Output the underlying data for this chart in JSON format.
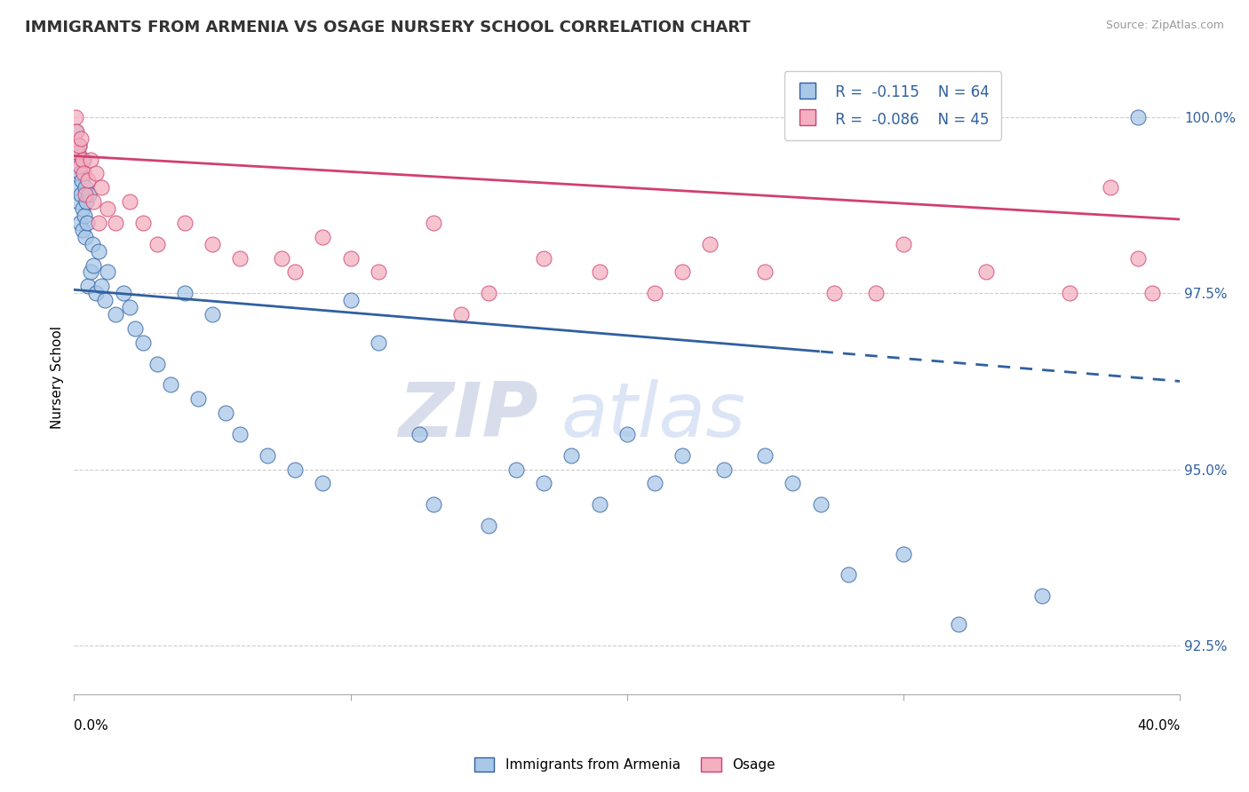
{
  "title": "IMMIGRANTS FROM ARMENIA VS OSAGE NURSERY SCHOOL CORRELATION CHART",
  "source": "Source: ZipAtlas.com",
  "ylabel": "Nursery School",
  "x_min": 0.0,
  "x_max": 40.0,
  "y_min": 91.8,
  "y_max": 100.8,
  "y_ticks": [
    92.5,
    95.0,
    97.5,
    100.0
  ],
  "y_tick_labels": [
    "92.5%",
    "95.0%",
    "97.5%",
    "100.0%"
  ],
  "legend_labels": [
    "Immigrants from Armenia",
    "Osage"
  ],
  "blue_R": -0.115,
  "blue_N": 64,
  "pink_R": -0.086,
  "pink_N": 45,
  "blue_color": "#A8C8E8",
  "pink_color": "#F4B0C0",
  "blue_line_color": "#3060A0",
  "pink_line_color": "#D04070",
  "watermark_zip": "ZIP",
  "watermark_atlas": "atlas",
  "blue_reg_x0": 0.0,
  "blue_reg_y0": 97.55,
  "blue_reg_x1": 40.0,
  "blue_reg_y1": 96.25,
  "blue_solid_end": 27.0,
  "pink_reg_x0": 0.0,
  "pink_reg_y0": 99.45,
  "pink_reg_x1": 40.0,
  "pink_reg_y1": 98.55,
  "blue_scatter_x": [
    0.05,
    0.08,
    0.1,
    0.12,
    0.15,
    0.18,
    0.2,
    0.22,
    0.25,
    0.28,
    0.3,
    0.32,
    0.35,
    0.38,
    0.4,
    0.42,
    0.45,
    0.48,
    0.5,
    0.55,
    0.6,
    0.65,
    0.7,
    0.8,
    0.9,
    1.0,
    1.1,
    1.2,
    1.5,
    1.8,
    2.0,
    2.2,
    2.5,
    3.0,
    3.5,
    4.0,
    4.5,
    5.0,
    5.5,
    6.0,
    7.0,
    8.0,
    9.0,
    10.0,
    11.0,
    12.5,
    13.0,
    15.0,
    16.0,
    17.0,
    18.0,
    19.0,
    20.0,
    21.0,
    22.0,
    23.5,
    25.0,
    26.0,
    27.0,
    28.0,
    30.0,
    32.0,
    35.0,
    38.5
  ],
  "blue_scatter_y": [
    99.8,
    99.5,
    99.3,
    99.0,
    98.8,
    99.6,
    98.5,
    99.2,
    98.9,
    99.1,
    98.7,
    98.4,
    99.4,
    98.6,
    98.3,
    99.0,
    98.8,
    98.5,
    97.6,
    98.9,
    97.8,
    98.2,
    97.9,
    97.5,
    98.1,
    97.6,
    97.4,
    97.8,
    97.2,
    97.5,
    97.3,
    97.0,
    96.8,
    96.5,
    96.2,
    97.5,
    96.0,
    97.2,
    95.8,
    95.5,
    95.2,
    95.0,
    94.8,
    97.4,
    96.8,
    95.5,
    94.5,
    94.2,
    95.0,
    94.8,
    95.2,
    94.5,
    95.5,
    94.8,
    95.2,
    95.0,
    95.2,
    94.8,
    94.5,
    93.5,
    93.8,
    92.8,
    93.2,
    100.0
  ],
  "pink_scatter_x": [
    0.05,
    0.1,
    0.15,
    0.18,
    0.2,
    0.25,
    0.3,
    0.35,
    0.4,
    0.5,
    0.6,
    0.7,
    0.8,
    0.9,
    1.0,
    1.2,
    1.5,
    2.0,
    2.5,
    3.0,
    4.0,
    5.0,
    6.0,
    7.5,
    8.0,
    9.0,
    10.0,
    11.0,
    13.0,
    15.0,
    17.0,
    19.0,
    21.0,
    23.0,
    25.0,
    27.5,
    30.0,
    33.0,
    36.0,
    37.5,
    39.0,
    38.5,
    14.0,
    22.0,
    29.0
  ],
  "pink_scatter_y": [
    100.0,
    99.8,
    99.5,
    99.6,
    99.3,
    99.7,
    99.4,
    99.2,
    98.9,
    99.1,
    99.4,
    98.8,
    99.2,
    98.5,
    99.0,
    98.7,
    98.5,
    98.8,
    98.5,
    98.2,
    98.5,
    98.2,
    98.0,
    98.0,
    97.8,
    98.3,
    98.0,
    97.8,
    98.5,
    97.5,
    98.0,
    97.8,
    97.5,
    98.2,
    97.8,
    97.5,
    98.2,
    97.8,
    97.5,
    99.0,
    97.5,
    98.0,
    97.2,
    97.8,
    97.5
  ]
}
